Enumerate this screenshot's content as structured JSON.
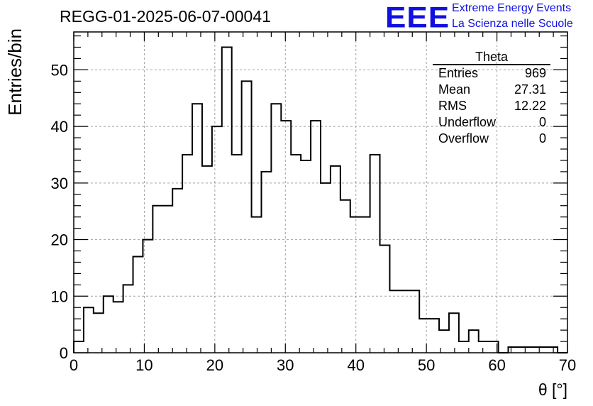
{
  "header": {
    "run_title": "REGG-01-2025-06-07-00041"
  },
  "logo": {
    "mark": "EEE",
    "line1": "Extreme Energy Events",
    "line2": "La Scienza nelle Scuole",
    "color": "#1010e0"
  },
  "stats_box": {
    "title": "Theta",
    "rows": [
      {
        "label": "Entries",
        "value": "969"
      },
      {
        "label": "Mean",
        "value": "27.31"
      },
      {
        "label": "RMS",
        "value": "12.22"
      },
      {
        "label": "Underflow",
        "value": "0"
      },
      {
        "label": "Overflow",
        "value": "0"
      }
    ]
  },
  "chart_data": {
    "type": "histogram",
    "xlabel": "θ [°]",
    "ylabel": "Entries/bin",
    "xlim": [
      0,
      70
    ],
    "ylim": [
      0,
      56.7
    ],
    "x_ticks": [
      0,
      10,
      20,
      30,
      40,
      50,
      60,
      70
    ],
    "y_ticks": [
      0,
      10,
      20,
      30,
      40,
      50
    ],
    "grid": true,
    "bin_edges": [
      0,
      1.4,
      2.8,
      4.2,
      5.6,
      7,
      8.4,
      9.8,
      11.2,
      12.6,
      14,
      15.4,
      16.8,
      18.2,
      19.6,
      21,
      22.4,
      23.8,
      25.2,
      26.6,
      28,
      29.4,
      30.8,
      32.2,
      33.6,
      35,
      36.4,
      37.8,
      39.2,
      40.6,
      42,
      43.4,
      44.8,
      46.2,
      47.6,
      49,
      50.4,
      51.8,
      53.2,
      54.6,
      56,
      57.4,
      58.8,
      60.2,
      61.6,
      63,
      64.4,
      65.8,
      67.2,
      68.6,
      70
    ],
    "values": [
      2,
      8,
      7,
      10,
      9,
      12,
      17,
      20,
      26,
      26,
      29,
      35,
      44,
      33,
      40,
      54,
      35,
      48,
      24,
      32,
      44,
      41,
      35,
      34,
      41,
      30,
      33,
      27,
      24,
      24,
      35,
      19,
      11,
      11,
      11,
      6,
      6,
      4,
      7,
      2,
      4,
      2,
      2,
      0,
      1,
      1,
      1,
      1,
      1,
      0
    ],
    "line_color": "#000000",
    "grid_color": "#a0a0a0"
  }
}
